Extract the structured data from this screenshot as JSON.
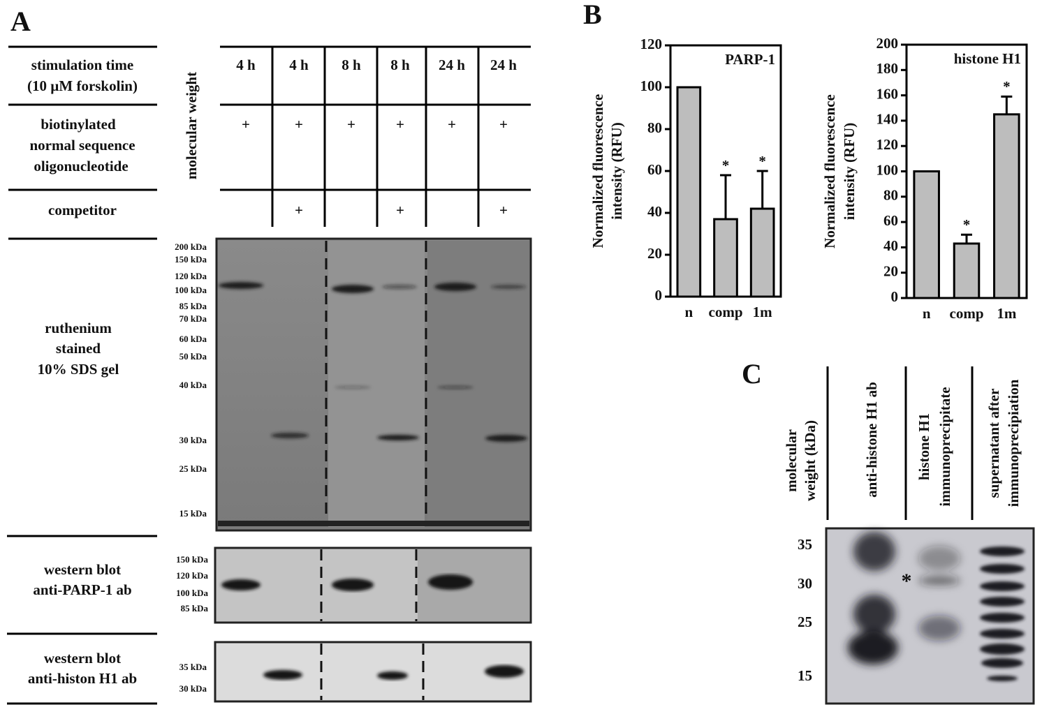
{
  "panel_a": {
    "label": "A",
    "rows": {
      "stimulation": [
        "stimulation time",
        "(10 µM forskolin)"
      ],
      "biotinylated": [
        "biotinylated",
        "normal sequence",
        "oligonucleotide"
      ],
      "competitor": "competitor",
      "gel": [
        "ruthenium",
        "stained",
        "10% SDS gel"
      ],
      "wb_parp": [
        "western blot",
        "anti-PARP-1 ab"
      ],
      "wb_h1": [
        "western blot",
        "anti-histon H1 ab"
      ]
    },
    "molecular_weight": "molecular weight",
    "lanes": [
      "4 h",
      "4 h",
      "8 h",
      "8 h",
      "24 h",
      "24 h"
    ],
    "biotinylated": [
      "+",
      "+",
      "+",
      "+",
      "+",
      "+"
    ],
    "competitor": [
      null,
      "+",
      null,
      "+",
      null,
      "+"
    ],
    "gel_markers": [
      "200 kDa",
      "150 kDa",
      "120 kDa",
      "100 kDa",
      "85 kDa",
      "70 kDa",
      "60 kDa",
      "50 kDa",
      "40 kDa",
      "30 kDa",
      "25 kDa",
      "15 kDa"
    ],
    "wb_parp_markers": [
      "150 kDa",
      "120 kDa",
      "100 kDa",
      "85 kDa"
    ],
    "wb_h1_markers": [
      "35 kDa",
      "30 kDa"
    ]
  },
  "panel_b": {
    "label": "B"
  },
  "chart_data": [
    {
      "type": "bar",
      "title": "PARP-1",
      "ylabel": [
        "Normalized fluorescence",
        "intensity (RFU)"
      ],
      "categories": [
        "n",
        "comp",
        "1m"
      ],
      "values": [
        100,
        37,
        42
      ],
      "errors": [
        null,
        21,
        18
      ],
      "annotations": [
        null,
        "*",
        "*"
      ],
      "color": "#bdbdbd",
      "ylim": [
        0,
        120
      ],
      "yticks": [
        0,
        20,
        40,
        60,
        80,
        100,
        120
      ]
    },
    {
      "type": "bar",
      "title": "histone H1",
      "ylabel": [
        "Normalized fluorescence",
        "intensity (RFU)"
      ],
      "categories": [
        "n",
        "comp",
        "1m"
      ],
      "values": [
        100,
        43,
        145
      ],
      "errors": [
        null,
        7,
        14
      ],
      "annotations": [
        null,
        "*",
        "*"
      ],
      "color": "#bdbdbd",
      "ylim": [
        0,
        200
      ],
      "yticks": [
        0,
        20,
        40,
        60,
        80,
        100,
        120,
        140,
        160,
        180,
        200
      ]
    }
  ],
  "panel_c": {
    "label": "C",
    "headers": {
      "mw": [
        "molecular",
        "weight (kDa)"
      ],
      "ab": "anti-histone H1 ab",
      "ip": [
        "histone H1",
        "immunoprecipitate"
      ],
      "sup": [
        "supernatant after",
        "immunoprecipiation"
      ]
    },
    "markers": [
      "35",
      "30",
      "25",
      "15"
    ],
    "asterisk": "*"
  }
}
